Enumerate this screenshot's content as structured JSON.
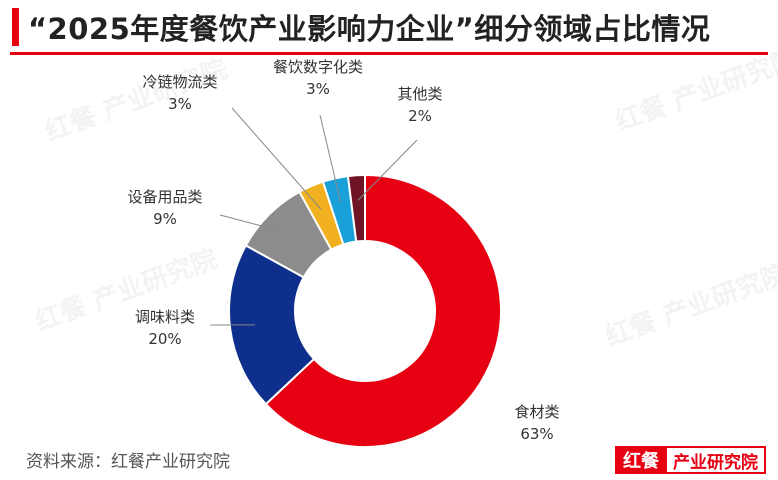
{
  "title": "“2025年度餐饮产业影响力企业”细分领域占比情况",
  "source": "资料来源：红餐产业研究院",
  "brand": {
    "logo": "红餐",
    "text": "产业研究院"
  },
  "watermark": "红餐 产业研究院",
  "chart_data": {
    "type": "pie",
    "subtype": "donut",
    "unit": "%",
    "slices": [
      {
        "name": "食材类",
        "value": 63,
        "label": "63%",
        "color": "#e60012"
      },
      {
        "name": "调味料类",
        "value": 20,
        "label": "20%",
        "color": "#0e2f8c"
      },
      {
        "name": "设备用品类",
        "value": 9,
        "label": "9%",
        "color": "#8c8c8c"
      },
      {
        "name": "冷链物流类",
        "value": 3,
        "label": "3%",
        "color": "#f0b020"
      },
      {
        "name": "餐饮数字化类",
        "value": 3,
        "label": "3%",
        "color": "#1aa0d8"
      },
      {
        "name": "其他类",
        "value": 2,
        "label": "2%",
        "color": "#6e1424"
      }
    ]
  }
}
